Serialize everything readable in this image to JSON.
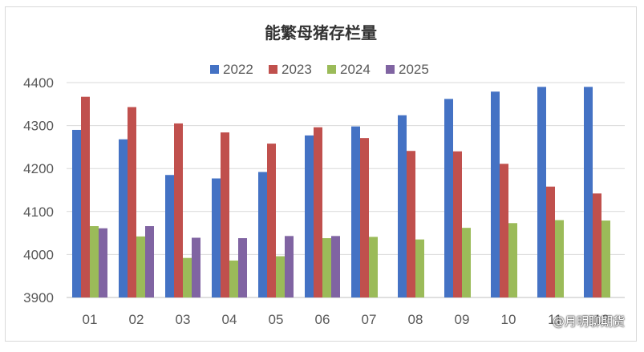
{
  "chart_data": {
    "type": "bar",
    "title": "能繁母猪存栏量",
    "xlabel": "",
    "ylabel": "",
    "categories": [
      "01",
      "02",
      "03",
      "04",
      "05",
      "06",
      "07",
      "08",
      "09",
      "10",
      "11",
      "12"
    ],
    "ylim": [
      3900,
      4400
    ],
    "yticks": [
      3900,
      4000,
      4100,
      4200,
      4300,
      4400
    ],
    "grid": true,
    "legend_position": "top",
    "series": [
      {
        "name": "2022",
        "color": "#4472C4",
        "values": [
          4290,
          4268,
          4185,
          4177,
          4192,
          4277,
          4298,
          4324,
          4362,
          4379,
          4390,
          4390
        ]
      },
      {
        "name": "2023",
        "color": "#C0504D",
        "values": [
          4367,
          4343,
          4305,
          4284,
          4258,
          4296,
          4271,
          4241,
          4240,
          4211,
          4158,
          4142
        ]
      },
      {
        "name": "2024",
        "color": "#9BBB59",
        "values": [
          4066,
          4042,
          3992,
          3986,
          3996,
          4038,
          4041,
          4035,
          4062,
          4073,
          4080,
          4079
        ]
      },
      {
        "name": "2025",
        "color": "#8064A2",
        "values": [
          4061,
          4066,
          4039,
          4038,
          4043,
          4043,
          null,
          null,
          null,
          null,
          null,
          null
        ]
      }
    ]
  },
  "watermark": "@月明聊期货"
}
